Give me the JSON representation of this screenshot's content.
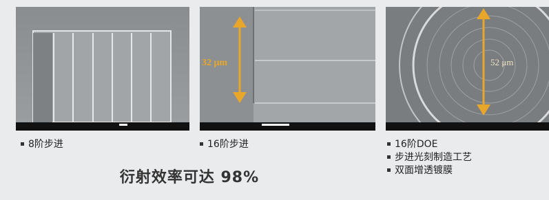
{
  "panels": [
    {
      "annotation": null,
      "captions": [
        "8阶步进"
      ]
    },
    {
      "annotation": "32 μm",
      "captions": [
        "16阶步进"
      ]
    },
    {
      "annotation": "52 μm",
      "captions": [
        "16阶DOE",
        "步进光刻制造工艺",
        "双面增透镀膜"
      ]
    }
  ],
  "headline": "衍射效率可达 98%"
}
